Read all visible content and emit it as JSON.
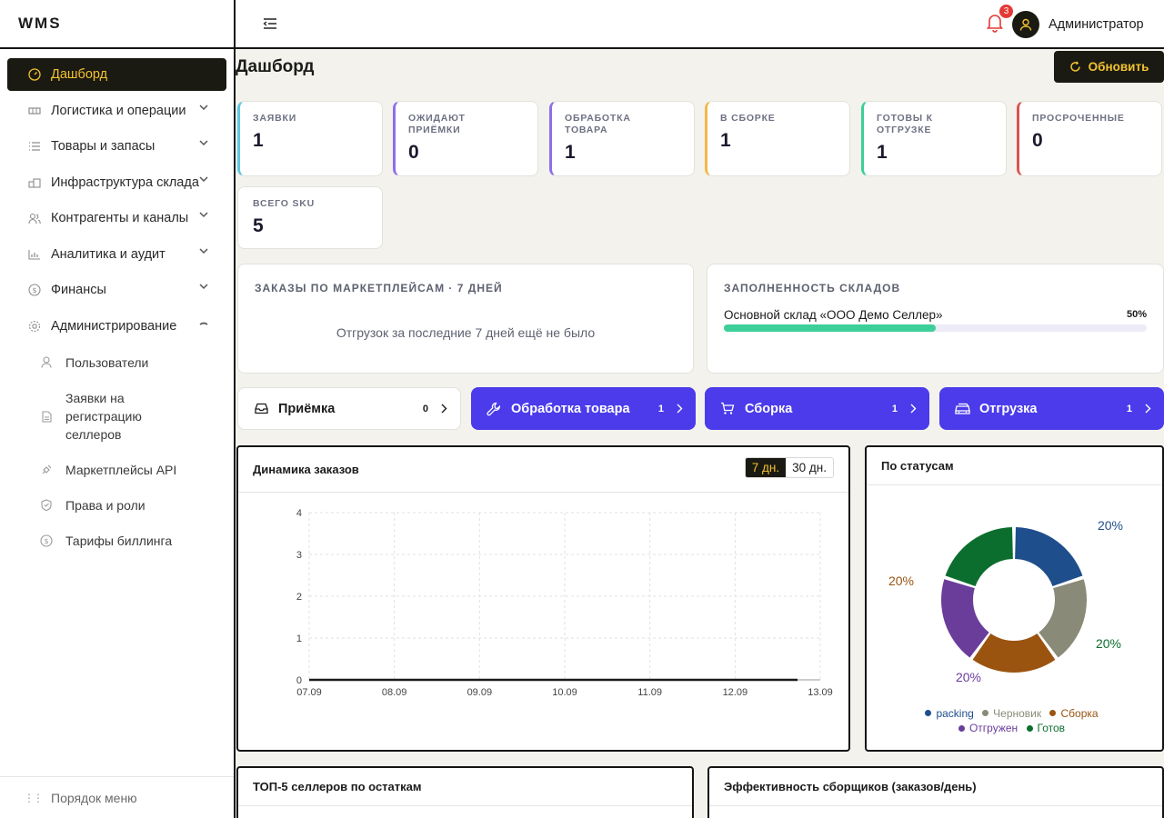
{
  "app": {
    "logo": "WMS"
  },
  "header": {
    "notifications_count": "3",
    "user_name": "Администратор"
  },
  "sidebar": {
    "items": [
      {
        "label": "Дашборд",
        "icon": "gauge-icon",
        "active": true
      },
      {
        "label": "Логистика и операции",
        "icon": "truck-icon"
      },
      {
        "label": "Товары и запасы",
        "icon": "list-icon"
      },
      {
        "label": "Инфраструктура склада",
        "icon": "warehouse-icon"
      },
      {
        "label": "Контрагенты и каналы",
        "icon": "users-icon"
      },
      {
        "label": "Аналитика и аудит",
        "icon": "bar-chart-icon"
      },
      {
        "label": "Финансы",
        "icon": "dollar-icon"
      },
      {
        "label": "Администрирование",
        "icon": "gear-icon",
        "expanded": true
      }
    ],
    "admin_sub": [
      {
        "label": "Пользователи",
        "icon": "user-icon"
      },
      {
        "label": "Заявки на регистрацию селлеров",
        "icon": "document-icon"
      },
      {
        "label": "Маркетплейсы API",
        "icon": "plug-icon"
      },
      {
        "label": "Права и роли",
        "icon": "shield-icon"
      },
      {
        "label": "Тарифы биллинга",
        "icon": "dollar-icon"
      }
    ],
    "footer": "Порядок меню"
  },
  "page": {
    "title": "Дашборд",
    "refresh_label": "Обновить"
  },
  "stats": [
    {
      "label": "ЗАЯВКИ",
      "value": "1",
      "color": "#5ec8e0"
    },
    {
      "label": "ОЖИДАЮТ ПРИЁМКИ",
      "value": "0",
      "color": "#8e6fe8"
    },
    {
      "label": "ОБРАБОТКА ТОВАРА",
      "value": "1",
      "color": "#8e6fe8"
    },
    {
      "label": "В СБОРКЕ",
      "value": "1",
      "color": "#f2b84a"
    },
    {
      "label": "ГОТОВЫ К ОТГРУЗКЕ",
      "value": "1",
      "color": "#3ccf9a"
    },
    {
      "label": "ПРОСРОЧЕННЫЕ",
      "value": "0",
      "color": "#d9534f"
    },
    {
      "label": "ВСЕГО SKU",
      "value": "5",
      "color": "#e2e2dc"
    }
  ],
  "marketplace_orders": {
    "title": "ЗАКАЗЫ ПО МАРКЕТПЛЕЙСАМ · 7 ДНЕЙ",
    "empty": "Отгрузок за последние 7 дней ещё не было"
  },
  "warehouse_fill": {
    "title": "ЗАПОЛНЕННОСТЬ СКЛАДОВ",
    "name": "Основной склад «ООО Демо Селлер»",
    "percent_label": "50%",
    "percent": 50
  },
  "quick_actions": [
    {
      "label": "Приёмка",
      "count": "0",
      "icon": "inbox-icon",
      "style": "white"
    },
    {
      "label": "Обработка товара",
      "count": "1",
      "icon": "wrench-icon",
      "style": "purple"
    },
    {
      "label": "Сборка",
      "count": "1",
      "icon": "cart-icon",
      "style": "purple"
    },
    {
      "label": "Отгрузка",
      "count": "1",
      "icon": "truck-icon",
      "style": "purple"
    }
  ],
  "dynamics": {
    "title": "Динамика заказов",
    "range_7": "7 дн.",
    "range_30": "30 дн."
  },
  "status_panel": {
    "title": "По статусам"
  },
  "top_sellers": {
    "title": "ТОП-5 селлеров по остаткам"
  },
  "pickers": {
    "title": "Эффективность сборщиков (заказов/день)"
  },
  "chart_data": [
    {
      "type": "line",
      "x": [
        "07.09",
        "08.09",
        "09.09",
        "10.09",
        "11.09",
        "12.09",
        "13.09"
      ],
      "series": [
        {
          "values": [
            0,
            0,
            0,
            0,
            0,
            0,
            0
          ]
        }
      ],
      "yticks": [
        "0",
        "1",
        "2",
        "3",
        "4"
      ],
      "ylim": [
        0,
        4
      ],
      "grid": true
    },
    {
      "type": "pie",
      "categories": [
        "packing",
        "Черновик",
        "Сборка",
        "Отгружен",
        "Готов"
      ],
      "values": [
        20,
        20,
        20,
        20,
        20
      ],
      "labels": [
        "20%",
        "20%",
        "20%",
        "20%",
        "20%"
      ],
      "colors": [
        "#1f4e8c",
        "#8a8a78",
        "#9a5410",
        "#6a3d9a",
        "#0c6e2e"
      ],
      "legend": "bottom"
    }
  ]
}
